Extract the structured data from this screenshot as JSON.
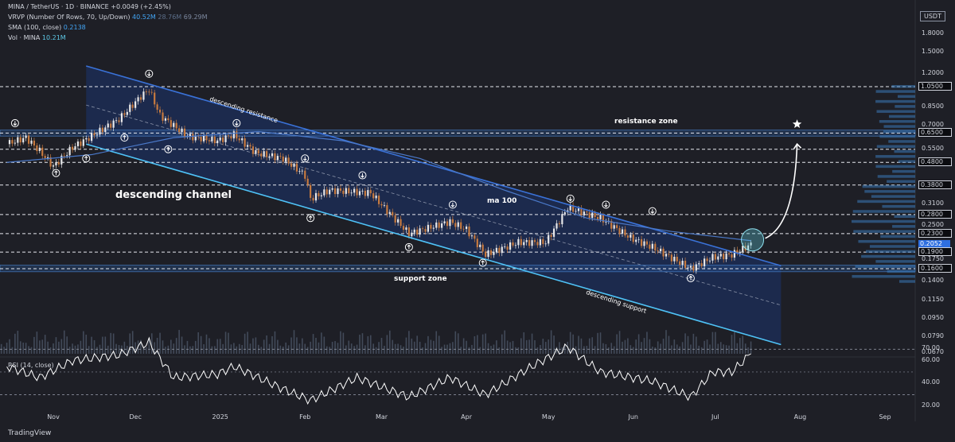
{
  "header": {
    "symbol_line": "MINA / TetherUS · 1D · BINANCE",
    "change": "+0.0049 (+2.45%)",
    "vrvp_label": "VRVP (Number Of Rows, 70, Up/Down)",
    "vrvp_values": [
      "40.52M",
      "28.76M",
      "69.29M"
    ],
    "sma_label": "SMA (100, close)",
    "sma_value": "0.2138",
    "vol_label": "Vol · MINA",
    "vol_value": "10.21M"
  },
  "currency_badge": "USDT",
  "rsi_label": "RSI (14, close)",
  "brand": "TradingView",
  "annotations": {
    "channel": "descending channel",
    "resistance_line": "descending resistance",
    "support_line": "descending support",
    "resistance_zone": "resistance zone",
    "support_zone": "support zone",
    "ma": "ma 100"
  },
  "colors": {
    "background": "#1e1f26",
    "channel_fill": "#1c2d55",
    "resistance_line": "#3a72d8",
    "support_line": "#4fc3f7",
    "candle_up": "#e8e8ea",
    "candle_down": "#c77a3f",
    "zone": "#2a5a9a",
    "current_price": "#2f6fe0"
  },
  "chart_data": {
    "type": "candlestick",
    "y_scale": "log",
    "ylim": [
      0.062,
      2.1
    ],
    "x_ticks": [
      {
        "label": "Nov",
        "date": "2024-11-01"
      },
      {
        "label": "Dec",
        "date": "2024-12-01"
      },
      {
        "label": "2025",
        "date": "2025-01-01"
      },
      {
        "label": "Feb",
        "date": "2025-02-01"
      },
      {
        "label": "Mar",
        "date": "2025-03-01"
      },
      {
        "label": "Apr",
        "date": "2025-04-01"
      },
      {
        "label": "May",
        "date": "2025-05-01"
      },
      {
        "label": "Jun",
        "date": "2025-06-01"
      },
      {
        "label": "Jul",
        "date": "2025-07-01"
      },
      {
        "label": "Aug",
        "date": "2025-08-01"
      },
      {
        "label": "Sep",
        "date": "2025-09-01"
      }
    ],
    "y_ticks": [
      "1.8000",
      "1.5000",
      "1.2000",
      "1.0500",
      "0.8500",
      "0.7000",
      "0.6500",
      "0.5500",
      "0.4800",
      "0.3800",
      "0.3100",
      "0.2800",
      "0.2500",
      "0.2300",
      "0.2052",
      "0.1900",
      "0.1750",
      "0.1600",
      "0.1400",
      "0.1150",
      "0.0950",
      "0.0790",
      "0.0670"
    ],
    "boxed_levels": [
      "1.0500",
      "0.6500",
      "0.4800",
      "0.3800",
      "0.2800",
      "0.2300",
      "0.1900",
      "0.1600"
    ],
    "current_price": "0.2052",
    "dashed_levels": [
      1.05,
      0.65,
      0.55,
      0.48,
      0.38,
      0.28,
      0.23,
      0.19,
      0.16
    ],
    "zones": [
      {
        "name": "resistance zone",
        "low": 0.63,
        "high": 0.67
      },
      {
        "name": "support zone",
        "low": 0.155,
        "high": 0.166
      }
    ],
    "channel": {
      "resistance": [
        {
          "date": "2024-11-13",
          "price": 1.3
        },
        {
          "date": "2025-07-25",
          "price": 0.165
        }
      ],
      "support": [
        {
          "date": "2024-11-13",
          "price": 0.58
        },
        {
          "date": "2025-07-25",
          "price": 0.073
        }
      ]
    },
    "close_path": [
      {
        "date": "2024-10-15",
        "price": 0.58
      },
      {
        "date": "2024-10-22",
        "price": 0.62
      },
      {
        "date": "2024-10-27",
        "price": 0.54
      },
      {
        "date": "2024-11-01",
        "price": 0.46
      },
      {
        "date": "2024-11-08",
        "price": 0.56
      },
      {
        "date": "2024-11-15",
        "price": 0.63
      },
      {
        "date": "2024-11-25",
        "price": 0.75
      },
      {
        "date": "2024-12-03",
        "price": 0.95
      },
      {
        "date": "2024-12-06",
        "price": 1.02
      },
      {
        "date": "2024-12-10",
        "price": 0.78
      },
      {
        "date": "2024-12-20",
        "price": 0.63
      },
      {
        "date": "2024-12-31",
        "price": 0.6
      },
      {
        "date": "2025-01-06",
        "price": 0.64
      },
      {
        "date": "2025-01-14",
        "price": 0.53
      },
      {
        "date": "2025-01-24",
        "price": 0.5
      },
      {
        "date": "2025-02-01",
        "price": 0.42
      },
      {
        "date": "2025-02-03",
        "price": 0.33
      },
      {
        "date": "2025-02-10",
        "price": 0.36
      },
      {
        "date": "2025-02-25",
        "price": 0.35
      },
      {
        "date": "2025-03-02",
        "price": 0.3
      },
      {
        "date": "2025-03-11",
        "price": 0.23
      },
      {
        "date": "2025-03-26",
        "price": 0.26
      },
      {
        "date": "2025-04-01",
        "price": 0.24
      },
      {
        "date": "2025-04-08",
        "price": 0.185
      },
      {
        "date": "2025-04-20",
        "price": 0.21
      },
      {
        "date": "2025-04-30",
        "price": 0.21
      },
      {
        "date": "2025-05-08",
        "price": 0.3
      },
      {
        "date": "2025-05-20",
        "price": 0.27
      },
      {
        "date": "2025-05-31",
        "price": 0.22
      },
      {
        "date": "2025-06-08",
        "price": 0.2
      },
      {
        "date": "2025-06-22",
        "price": 0.16
      },
      {
        "date": "2025-06-30",
        "price": 0.18
      },
      {
        "date": "2025-07-07",
        "price": 0.185
      },
      {
        "date": "2025-07-14",
        "price": 0.2052
      }
    ],
    "sma100_path": [
      {
        "date": "2024-10-15",
        "price": 0.48
      },
      {
        "date": "2024-11-15",
        "price": 0.52
      },
      {
        "date": "2024-12-15",
        "price": 0.62
      },
      {
        "date": "2025-01-15",
        "price": 0.66
      },
      {
        "date": "2025-02-15",
        "price": 0.6
      },
      {
        "date": "2025-03-15",
        "price": 0.5
      },
      {
        "date": "2025-04-15",
        "price": 0.36
      },
      {
        "date": "2025-05-15",
        "price": 0.27
      },
      {
        "date": "2025-06-15",
        "price": 0.235
      },
      {
        "date": "2025-07-14",
        "price": 0.2138
      }
    ],
    "rsi": {
      "ylim": [
        15,
        80
      ],
      "ticks": [
        "70.00",
        "60.00",
        "40.00",
        "20.00"
      ],
      "levels": [
        70,
        30
      ],
      "path": [
        {
          "date": "2024-10-15",
          "value": 55
        },
        {
          "date": "2024-10-27",
          "value": 45
        },
        {
          "date": "2024-11-08",
          "value": 60
        },
        {
          "date": "2024-11-25",
          "value": 65
        },
        {
          "date": "2024-12-06",
          "value": 76
        },
        {
          "date": "2024-12-15",
          "value": 45
        },
        {
          "date": "2024-12-31",
          "value": 48
        },
        {
          "date": "2025-01-06",
          "value": 55
        },
        {
          "date": "2025-01-24",
          "value": 35
        },
        {
          "date": "2025-02-03",
          "value": 25
        },
        {
          "date": "2025-02-20",
          "value": 45
        },
        {
          "date": "2025-03-11",
          "value": 28
        },
        {
          "date": "2025-03-26",
          "value": 45
        },
        {
          "date": "2025-04-08",
          "value": 30
        },
        {
          "date": "2025-04-25",
          "value": 55
        },
        {
          "date": "2025-05-08",
          "value": 72
        },
        {
          "date": "2025-05-20",
          "value": 50
        },
        {
          "date": "2025-06-08",
          "value": 42
        },
        {
          "date": "2025-06-22",
          "value": 28
        },
        {
          "date": "2025-06-30",
          "value": 50
        },
        {
          "date": "2025-07-07",
          "value": 50
        },
        {
          "date": "2025-07-14",
          "value": 66
        }
      ]
    },
    "projection_target": 0.63
  }
}
